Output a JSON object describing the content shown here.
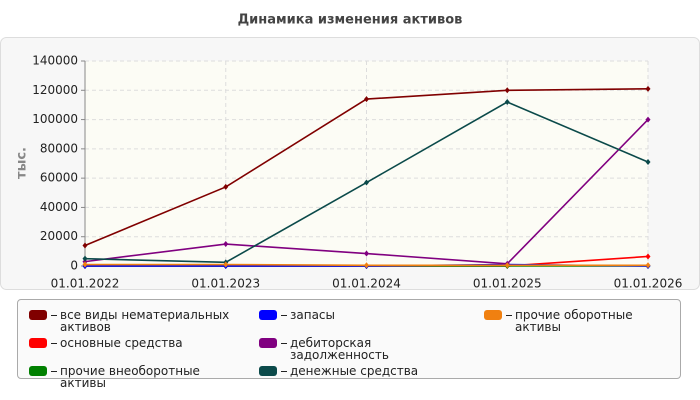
{
  "chart_data": {
    "type": "line",
    "title": "Динамика изменения активов",
    "y_label": "тыс.",
    "categories": [
      "01.01.2022",
      "01.01.2023",
      "01.01.2024",
      "01.01.2025",
      "01.01.2026"
    ],
    "ylim": [
      0,
      140000
    ],
    "yticks": [
      0,
      20000,
      40000,
      60000,
      80000,
      100000,
      120000,
      140000
    ],
    "grid": true,
    "series": [
      {
        "name": "все виды нематериальных активов",
        "color": "#800000",
        "values": [
          14000,
          54000,
          114000,
          120000,
          121000
        ]
      },
      {
        "name": "основные средства",
        "color": "#ff0000",
        "values": [
          0,
          0,
          0,
          0,
          6500
        ]
      },
      {
        "name": "прочие внеоборотные активы",
        "color": "#008000",
        "values": [
          0,
          0,
          0,
          0,
          0
        ]
      },
      {
        "name": "запасы",
        "color": "#0000ff",
        "values": [
          0,
          0,
          0,
          1000,
          0
        ]
      },
      {
        "name": "дебиторская задолженность",
        "color": "#800080",
        "values": [
          3000,
          15000,
          8500,
          1500,
          100000
        ]
      },
      {
        "name": "денежные средства",
        "color": "#0b4a4a",
        "values": [
          5000,
          2500,
          57000,
          112000,
          71000
        ]
      },
      {
        "name": "прочие оборотные активы",
        "color": "#f08010",
        "values": [
          1000,
          1000,
          500,
          500,
          500
        ]
      }
    ]
  }
}
